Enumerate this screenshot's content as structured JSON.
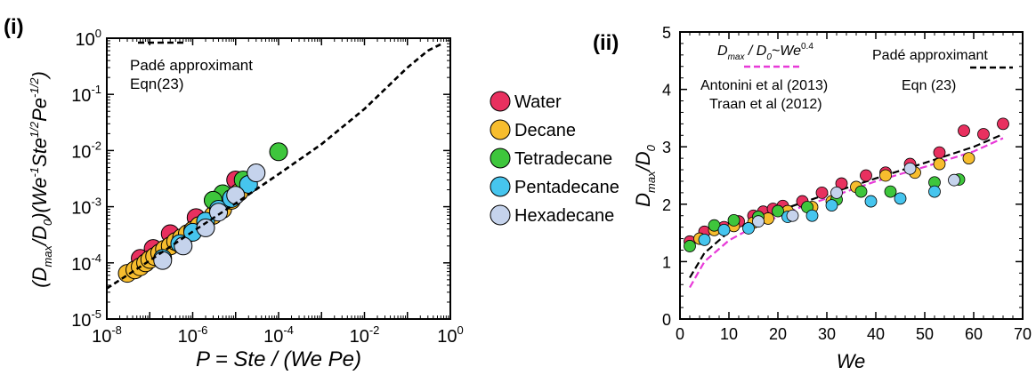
{
  "colors": {
    "water": "#e8305f",
    "decane": "#f7bd2e",
    "tetradecane": "#3ec63c",
    "pentadecane": "#46c5ee",
    "hexadecane": "#c5d3ec",
    "fit_line": "#000000",
    "power_law": "#e83ad8"
  },
  "legend": {
    "items": [
      {
        "key": "water",
        "label": "Water"
      },
      {
        "key": "decane",
        "label": "Decane"
      },
      {
        "key": "tetradecane",
        "label": "Tetradecane"
      },
      {
        "key": "pentadecane",
        "label": "Pentadecane"
      },
      {
        "key": "hexadecane",
        "label": "Hexadecane"
      }
    ]
  },
  "chart_data": [
    {
      "panel": "(i)",
      "type": "scatter",
      "xscale": "log",
      "yscale": "log",
      "xlim": [
        1e-08,
        1
      ],
      "ylim": [
        1e-05,
        1
      ],
      "xlabel": "P = Ste / (We Pe)",
      "ylabel": "(Dmax / D0)(We^-1 Ste^1/2 Pe^-1/2)",
      "xticks": [
        {
          "v": -8,
          "base": "10",
          "exp": "-8"
        },
        {
          "v": -6,
          "base": "10",
          "exp": "-6"
        },
        {
          "v": -4,
          "base": "10",
          "exp": "-4"
        },
        {
          "v": -2,
          "base": "10",
          "exp": "-2"
        },
        {
          "v": 0,
          "base": "10",
          "exp": "0"
        }
      ],
      "yticks": [
        {
          "v": -5,
          "base": "10",
          "exp": "-5"
        },
        {
          "v": -4,
          "base": "10",
          "exp": "-4"
        },
        {
          "v": -3,
          "base": "10",
          "exp": "-3"
        },
        {
          "v": -2,
          "base": "10",
          "exp": "-2"
        },
        {
          "v": -1,
          "base": "10",
          "exp": "-1"
        },
        {
          "v": 0,
          "base": "10",
          "exp": "0"
        }
      ],
      "annotation": {
        "line1": "Padé approximant",
        "line2": "Eqn(23)"
      },
      "series": [
        {
          "name": "Padé approximant Eqn(23)",
          "kind": "line",
          "style": "dashed",
          "x": [
            1e-08,
            1e-07,
            1e-06,
            1e-05,
            0.0001,
            0.001,
            0.01,
            0.1,
            0.3,
            0.6
          ],
          "y": [
            3.5e-05,
            0.00011,
            0.00036,
            0.00115,
            0.0038,
            0.013,
            0.055,
            0.3,
            0.6,
            0.78
          ]
        },
        {
          "name": "Water",
          "kind": "points",
          "key": "water",
          "x": [
            6e-08,
            1.2e-07,
            3e-07,
            1.2e-06,
            3e-06,
            1e-05
          ],
          "y": [
            0.00012,
            0.00018,
            0.00033,
            0.00064,
            0.0013,
            0.003
          ]
        },
        {
          "name": "Decane",
          "kind": "points",
          "key": "decane",
          "x": [
            3e-08,
            4.5e-08,
            6e-08,
            8e-08,
            1e-07,
            1.3e-07,
            1.7e-07,
            2.2e-07,
            3e-07,
            4e-07,
            5.5e-07,
            7.5e-07,
            1e-06,
            1.4e-06,
            2e-06,
            3e-06,
            5e-06,
            8e-06,
            1.2e-05
          ],
          "y": [
            6.5e-05,
            7.5e-05,
            8.5e-05,
            0.0001,
            0.000115,
            0.00013,
            0.00015,
            0.000175,
            0.0002,
            0.00024,
            0.00028,
            0.00033,
            0.00038,
            0.00046,
            0.00055,
            0.0007,
            0.0009,
            0.0013,
            0.0018
          ]
        },
        {
          "name": "Tetradecane",
          "kind": "points",
          "key": "tetradecane",
          "x": [
            0.0001,
            1.5e-05,
            5e-06,
            3e-06
          ],
          "y": [
            0.0095,
            0.003,
            0.0017,
            0.0013
          ]
        },
        {
          "name": "Pentadecane",
          "kind": "points",
          "key": "pentadecane",
          "x": [
            2e-07,
            5e-07,
            1e-06,
            2e-06,
            4e-06,
            8e-06,
            2e-05
          ],
          "y": [
            0.00012,
            0.00022,
            0.00035,
            0.00055,
            0.0009,
            0.0014,
            0.0025
          ]
        },
        {
          "name": "Hexadecane",
          "kind": "points",
          "key": "hexadecane",
          "x": [
            2e-07,
            6e-07,
            2e-06,
            4e-06,
            1e-05,
            3e-05
          ],
          "y": [
            0.00011,
            0.0002,
            0.00042,
            0.0008,
            0.0016,
            0.004
          ]
        }
      ]
    },
    {
      "panel": "(ii)",
      "type": "scatter",
      "xlim": [
        0,
        70
      ],
      "ylim": [
        0,
        5
      ],
      "xlabel": "We",
      "ylabel": "Dmax/D0",
      "xticks": [
        0,
        10,
        20,
        30,
        40,
        50,
        60,
        70
      ],
      "yticks": [
        0,
        1,
        2,
        3,
        4,
        5
      ],
      "annotations": {
        "power_law": {
          "base": "D",
          "sub1": "max",
          "mid": " / D",
          "sub2": "0",
          "tilde": "~We",
          "sup": "0.4"
        },
        "ref1": "Antonini et al (2013)",
        "ref2": "Traan et al (2012)",
        "pade": "Padé approximant",
        "eqn": "Eqn (23)"
      },
      "series": [
        {
          "name": "Padé approximant Eqn (23)",
          "kind": "line",
          "style": "dashed",
          "x": [
            2,
            5,
            10,
            15,
            20,
            25,
            30,
            40,
            50,
            60,
            66
          ],
          "y": [
            0.72,
            1.15,
            1.52,
            1.72,
            1.88,
            2.03,
            2.17,
            2.45,
            2.72,
            3.0,
            3.22
          ]
        },
        {
          "name": "Dmax/D0 ~ We^0.4",
          "kind": "line",
          "style": "dashed",
          "x": [
            2,
            5,
            10,
            15,
            20,
            25,
            30,
            40,
            50,
            60,
            66
          ],
          "y": [
            0.55,
            1.0,
            1.37,
            1.6,
            1.78,
            1.96,
            2.1,
            2.4,
            2.65,
            2.92,
            3.15
          ]
        },
        {
          "name": "Water",
          "kind": "points",
          "key": "water",
          "x": [
            2,
            5,
            9,
            12,
            15,
            17,
            19,
            21,
            25,
            29,
            33,
            38,
            42,
            47,
            53,
            58,
            62,
            66
          ],
          "y": [
            1.35,
            1.52,
            1.6,
            1.7,
            1.8,
            1.87,
            1.92,
            1.97,
            2.05,
            2.2,
            2.36,
            2.5,
            2.55,
            2.7,
            2.9,
            3.28,
            3.22,
            3.4
          ]
        },
        {
          "name": "Decane",
          "kind": "points",
          "key": "decane",
          "x": [
            4,
            7,
            11,
            15,
            18,
            22,
            27,
            31,
            36,
            42,
            48,
            53,
            59
          ],
          "y": [
            1.4,
            1.55,
            1.62,
            1.68,
            1.75,
            1.88,
            1.95,
            2.05,
            2.3,
            2.5,
            2.55,
            2.7,
            2.8
          ]
        },
        {
          "name": "Tetradecane",
          "kind": "points",
          "key": "tetradecane",
          "x": [
            2,
            7,
            11,
            16,
            20,
            26,
            32,
            37,
            43,
            52,
            57
          ],
          "y": [
            1.27,
            1.63,
            1.72,
            1.78,
            1.88,
            1.95,
            2.08,
            2.22,
            2.22,
            2.38,
            2.43
          ]
        },
        {
          "name": "Pentadecane",
          "kind": "points",
          "key": "pentadecane",
          "x": [
            5,
            9,
            14,
            22,
            27,
            31,
            39,
            45,
            52
          ],
          "y": [
            1.38,
            1.55,
            1.58,
            1.78,
            1.8,
            1.98,
            2.05,
            2.1,
            2.22
          ]
        },
        {
          "name": "Hexadecane",
          "kind": "points",
          "key": "hexadecane",
          "x": [
            16,
            23,
            32,
            47,
            56
          ],
          "y": [
            1.7,
            1.8,
            2.2,
            2.62,
            2.42
          ]
        }
      ]
    }
  ]
}
